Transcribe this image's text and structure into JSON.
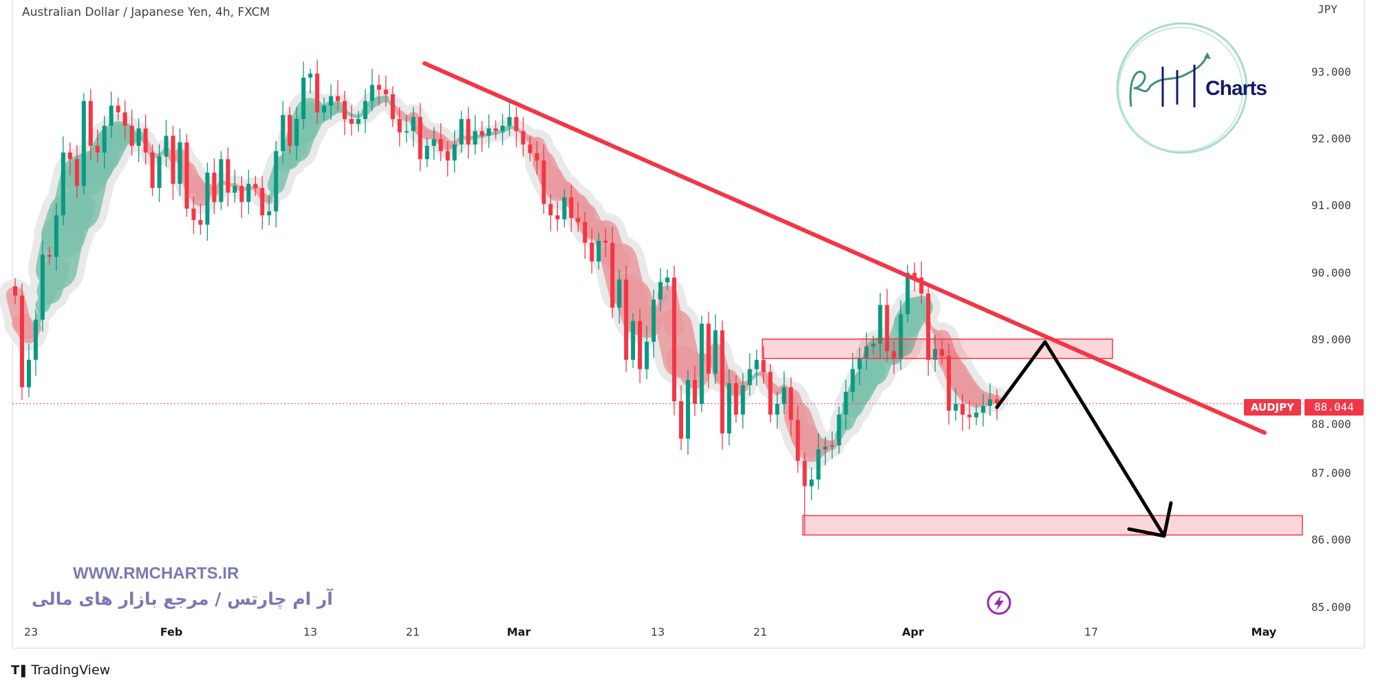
{
  "header": {
    "title": "Australian Dollar / Japanese Yen, 4h, FXCM"
  },
  "price_axis": {
    "currency": "JPY"
  },
  "symbol_tag": "AUDJPY",
  "price_tag": "88.044",
  "watermark": {
    "url": "WWW.RMCHARTS.IR",
    "tagline": "آر ام چارتس / مرجع بازار های مالی"
  },
  "logo": {
    "text": "Charts"
  },
  "footer": {
    "brand": "TradingView",
    "brand_icon": "tradingview-logo"
  },
  "icons": {
    "lightning": "lightning-icon"
  },
  "colors": {
    "up": "#089981",
    "down": "#f23645",
    "trendline": "#f23645",
    "zone": "#f23645",
    "projection": "#000000",
    "watermark": "#7a79b4"
  },
  "chart_data": {
    "type": "candlestick",
    "title": "Australian Dollar / Japanese Yen, 4h, FXCM",
    "ylabel": "JPY",
    "ylim": [
      84.6,
      93.1
    ],
    "y_ticks": [
      "93.000",
      "92.000",
      "91.000",
      "90.000",
      "89.000",
      "88.000",
      "87.000",
      "86.000",
      "85.000"
    ],
    "x_ticks": [
      "23",
      "Feb",
      "13",
      "21",
      "Mar",
      "13",
      "21",
      "Apr",
      "17",
      "May"
    ],
    "last_price": 88.044,
    "first_open": 89.8,
    "close": [
      89.66,
      88.29,
      88.7,
      89.3,
      90.27,
      90.24,
      90.86,
      91.8,
      91.7,
      91.3,
      92.57,
      91.9,
      91.8,
      92.2,
      92.5,
      92.4,
      92.2,
      91.9,
      92.16,
      91.8,
      91.27,
      91.74,
      92.05,
      91.33,
      91.95,
      90.96,
      90.79,
      90.72,
      91.5,
      91.06,
      91.7,
      91.2,
      91.3,
      91.06,
      91.33,
      91.27,
      90.86,
      90.92,
      91.82,
      92.36,
      91.9,
      92.3,
      92.92,
      92.98,
      92.4,
      92.5,
      92.64,
      92.57,
      92.3,
      92.23,
      92.3,
      92.57,
      92.81,
      92.74,
      92.67,
      92.3,
      92.1,
      92.12,
      92.33,
      91.7,
      91.9,
      92.0,
      91.82,
      91.68,
      91.92,
      92.3,
      91.92,
      92.12,
      92.05,
      92.16,
      92.12,
      92.2,
      92.33,
      92.12,
      91.92,
      91.79,
      91.68,
      91.03,
      90.86,
      90.8,
      91.13,
      90.82,
      90.76,
      90.45,
      90.17,
      90.48,
      90.45,
      89.48,
      89.9,
      88.7,
      89.28,
      88.56,
      88.97,
      89.6,
      89.86,
      89.93,
      88.08,
      87.52,
      88.4,
      88.04,
      89.24,
      88.49,
      89.14,
      87.6,
      88.35,
      87.88,
      88.32,
      88.56,
      88.7,
      88.52,
      87.88,
      88.04,
      88.29,
      87.8,
      87.19,
      86.81,
      86.91,
      87.36,
      87.4,
      87.42,
      87.88,
      88.22,
      88.56,
      88.73,
      88.9,
      88.94,
      89.52,
      88.83,
      88.73,
      89.38,
      90.0,
      89.93,
      89.69,
      88.7,
      88.86,
      88.76,
      87.94,
      88.04,
      87.88,
      87.84,
      87.91,
      88.01,
      88.11,
      88.044
    ],
    "wick_extremes": [
      {
        "index": 1,
        "low": 88.1
      },
      {
        "index": 43,
        "high": 93.05
      },
      {
        "index": 97,
        "low": 87.35
      },
      {
        "index": 115,
        "low": 86.08
      },
      {
        "index": 131,
        "high": 90.15
      }
    ],
    "annotations": {
      "trendline": {
        "from": [
          21,
          93.1
        ],
        "to": [
          "May",
          87.65
        ]
      },
      "resistance_zone": [
        88.72,
        89.01
      ],
      "support_zone": [
        86.08,
        86.37
      ],
      "projection_path": [
        88.1,
        88.97,
        86.1
      ]
    }
  }
}
